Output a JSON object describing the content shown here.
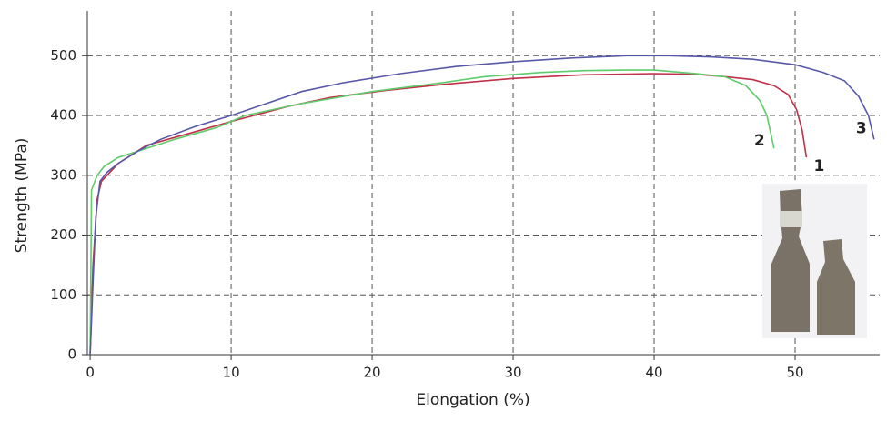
{
  "chart_data": {
    "type": "line",
    "x_label": "Elongation (%)",
    "y_label": "Strength (MPa)",
    "xlim": [
      -0.2,
      56
    ],
    "ylim": [
      0,
      575
    ],
    "xticks": [
      0,
      10,
      20,
      30,
      40,
      50
    ],
    "yticks": [
      0,
      100,
      200,
      300,
      400,
      500
    ],
    "grid": true,
    "series": [
      {
        "name": "1",
        "color": "#c03048",
        "x": [
          0,
          0.2,
          0.5,
          0.8,
          2,
          4,
          7,
          10,
          14,
          17,
          21,
          25,
          30,
          35,
          40,
          43,
          45,
          47,
          48.5,
          49.5,
          50.1,
          50.5,
          50.8
        ],
        "y": [
          0,
          150,
          260,
          290,
          320,
          350,
          370,
          390,
          415,
          430,
          442,
          452,
          462,
          468,
          470,
          469,
          465,
          460,
          450,
          435,
          410,
          375,
          330
        ]
      },
      {
        "name": "2",
        "color": "#5fcb6c",
        "x": [
          0,
          0.05,
          0.1,
          0.5,
          1,
          2,
          4,
          6,
          9,
          11,
          15,
          20,
          25,
          28,
          32,
          35,
          38,
          40,
          43,
          45,
          46.5,
          47.5,
          48,
          48.5
        ],
        "y": [
          0,
          150,
          275,
          300,
          315,
          330,
          345,
          360,
          380,
          400,
          420,
          440,
          455,
          465,
          472,
          475,
          476,
          476,
          470,
          465,
          450,
          425,
          400,
          345
        ]
      },
      {
        "name": "3",
        "color": "#5858a8",
        "x": [
          0,
          0.2,
          0.4,
          0.7,
          1.2,
          2,
          3.5,
          5,
          7.5,
          10,
          12.5,
          15,
          18,
          22,
          26,
          30,
          34,
          38,
          41,
          44,
          47,
          50,
          52,
          53.5,
          54.5,
          55.2,
          55.6
        ],
        "y": [
          0,
          120,
          230,
          290,
          305,
          320,
          342,
          360,
          382,
          400,
          420,
          440,
          455,
          470,
          482,
          490,
          496,
          500,
          500,
          498,
          494,
          485,
          472,
          458,
          432,
          400,
          360
        ]
      }
    ]
  }
}
